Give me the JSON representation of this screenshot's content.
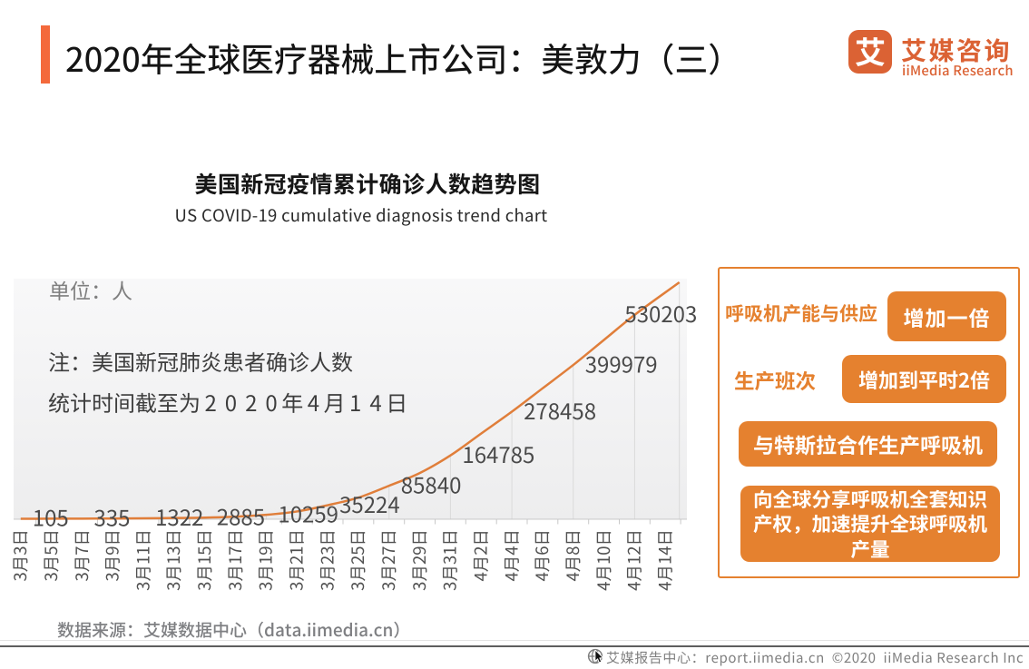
{
  "header": {
    "title": "2020年全球医疗器械上市公司：美敦力（三）",
    "logo": {
      "mark": "艾",
      "name": "艾媒咨询",
      "subtitle": "iiMedia Research"
    }
  },
  "chart_data": {
    "type": "line",
    "title": "美国新冠疫情累计确诊人数趋势图",
    "subtitle": "US COVID-19 cumulative diagnosis trend chart",
    "unit_label": "单位：人",
    "notes": [
      "注：美国新冠肺炎患者确诊人数",
      "统计时间截至为2020年4月14日"
    ],
    "x_labels": [
      "3月3日",
      "3月5日",
      "3月7日",
      "3月9日",
      "3月11日",
      "3月13日",
      "3月15日",
      "3月17日",
      "3月19日",
      "3月21日",
      "3月23日",
      "3月25日",
      "3月27日",
      "3月29日",
      "3月31日",
      "4月2日",
      "4月4日",
      "4月6日",
      "4月8日",
      "4月10日",
      "4月12日",
      "4月14日"
    ],
    "series": [
      {
        "name": "美国新冠疫情累计确诊人数",
        "labeled_points": [
          {
            "x": "3月3日",
            "y": 105
          },
          {
            "x": "3月7日",
            "y": 335
          },
          {
            "x": "3月11日",
            "y": 1322
          },
          {
            "x": "3月15日",
            "y": 2885
          },
          {
            "x": "3月19日",
            "y": 10259
          },
          {
            "x": "3月23日",
            "y": 35224
          },
          {
            "x": "3月27日",
            "y": 85840
          },
          {
            "x": "3月31日",
            "y": 164785
          },
          {
            "x": "4月4日",
            "y": 278458
          },
          {
            "x": "4月8日",
            "y": 399979
          },
          {
            "x": "4月12日",
            "y": 530203
          }
        ],
        "curve_end": {
          "x": "4月14日",
          "y_estimate": 615000,
          "labeled": false
        }
      }
    ],
    "ylim": [
      0,
      627000
    ],
    "grid": "vertical drop lines below labeled points",
    "legend_position": "none",
    "line_color": "#e07e3a",
    "value_label_color": "#4a4a4a"
  },
  "source": "数据来源：艾媒数据中心（data.iimedia.cn）",
  "side_panel": {
    "rows": [
      {
        "label": "呼吸机产能与供应",
        "button": "增加一倍"
      },
      {
        "label": "生产班次",
        "button": "增加到平时2倍"
      },
      {
        "label": "",
        "button": "与特斯拉合作生产呼吸机"
      },
      {
        "label": "",
        "button": "向全球分享呼吸机全套知识产权，加速提升全球呼吸机产量"
      }
    ]
  },
  "footer": {
    "text": "艾媒报告中心：report.iimedia.cn  ©2020  iiMedia Research Inc"
  },
  "colors": {
    "accent_bar": "#f4693b",
    "logo": "#db6234",
    "panel_accent": "#e5812f",
    "chart_line": "#e07e3a"
  }
}
